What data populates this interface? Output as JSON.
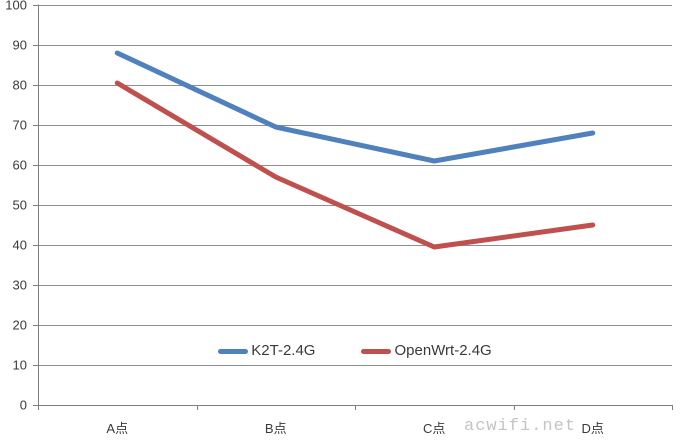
{
  "chart_data": {
    "type": "line",
    "title": "",
    "xlabel": "",
    "ylabel": "",
    "categories": [
      "A点",
      "B点",
      "C点",
      "D点"
    ],
    "series": [
      {
        "name": "K2T-2.4G",
        "color": "#4F81BD",
        "values": [
          88,
          69.5,
          61,
          68
        ]
      },
      {
        "name": "OpenWrt-2.4G",
        "color": "#C0504D",
        "values": [
          80.5,
          57,
          39.5,
          45
        ]
      }
    ],
    "ylim": [
      0,
      100
    ],
    "ytick_step": 10,
    "grid": true,
    "legend_position": "bottom-center-inside",
    "line_width": 5
  },
  "watermark": {
    "text": "acwifi.net"
  },
  "colors": {
    "background": "#FFFFFF",
    "gridline": "#8E8E8E",
    "axis": "#7F7F7F",
    "axis_label": "#3A3A3A",
    "watermark": "#C4C4C4"
  }
}
